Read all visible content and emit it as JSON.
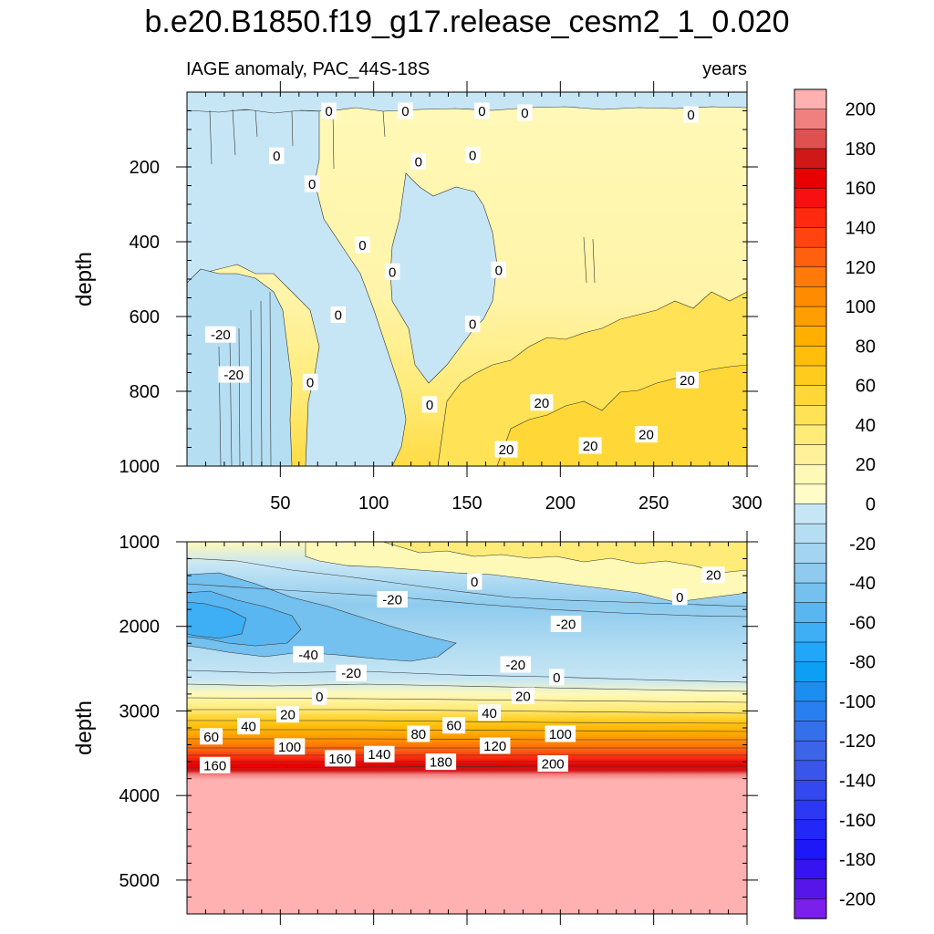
{
  "title": "b.e20.B1850.f19_g17.release_cesm2_1_0.020",
  "chart_data": {
    "type": "heatmap",
    "variable": "IAGE anomaly",
    "region": "PAC_44S-18S",
    "units": "years",
    "xlabel": "",
    "ylabel": "depth",
    "xlim": [
      0,
      300
    ],
    "xticks": [
      50,
      100,
      150,
      200,
      250,
      300
    ],
    "panels": [
      {
        "name": "upper",
        "ylim": [
          1000,
          0
        ],
        "yticks": [
          200,
          400,
          600,
          800,
          1000
        ],
        "contour_labels": [
          {
            "text": "0",
            "x": 76,
            "y": 50
          },
          {
            "text": "0",
            "x": 117,
            "y": 50
          },
          {
            "text": "0",
            "x": 158,
            "y": 50
          },
          {
            "text": "0",
            "x": 181,
            "y": 55
          },
          {
            "text": "0",
            "x": 270,
            "y": 60
          },
          {
            "text": "0",
            "x": 48,
            "y": 170
          },
          {
            "text": "0",
            "x": 124,
            "y": 185
          },
          {
            "text": "0",
            "x": 153,
            "y": 168
          },
          {
            "text": "0",
            "x": 67,
            "y": 245
          },
          {
            "text": "0",
            "x": 94,
            "y": 408
          },
          {
            "text": "0",
            "x": 110,
            "y": 480
          },
          {
            "text": "0",
            "x": 167,
            "y": 475
          },
          {
            "text": "0",
            "x": 81,
            "y": 595
          },
          {
            "text": "0",
            "x": 153,
            "y": 620
          },
          {
            "text": "0",
            "x": 66,
            "y": 775
          },
          {
            "text": "0",
            "x": 130,
            "y": 835
          },
          {
            "text": "-20",
            "x": 18,
            "y": 648
          },
          {
            "text": "-20",
            "x": 25,
            "y": 755
          },
          {
            "text": "20",
            "x": 190,
            "y": 830
          },
          {
            "text": "20",
            "x": 268,
            "y": 770
          },
          {
            "text": "20",
            "x": 171,
            "y": 955
          },
          {
            "text": "20",
            "x": 216,
            "y": 945
          },
          {
            "text": "20",
            "x": 246,
            "y": 915
          }
        ]
      },
      {
        "name": "lower",
        "ylim": [
          5400,
          1000
        ],
        "yticks": [
          1000,
          2000,
          3000,
          4000,
          5000
        ],
        "contour_labels": [
          {
            "text": "20",
            "x": 282,
            "y": 1390
          },
          {
            "text": "0",
            "x": 264,
            "y": 1650
          },
          {
            "text": "0",
            "x": 154,
            "y": 1470
          },
          {
            "text": "-20",
            "x": 110,
            "y": 1680
          },
          {
            "text": "-20",
            "x": 203,
            "y": 1970
          },
          {
            "text": "-40",
            "x": 65,
            "y": 2330
          },
          {
            "text": "-20",
            "x": 88,
            "y": 2550
          },
          {
            "text": "-20",
            "x": 176,
            "y": 2450
          },
          {
            "text": "0",
            "x": 198,
            "y": 2600
          },
          {
            "text": "0",
            "x": 71,
            "y": 2830
          },
          {
            "text": "20",
            "x": 180,
            "y": 2820
          },
          {
            "text": "20",
            "x": 54,
            "y": 3040
          },
          {
            "text": "40",
            "x": 33,
            "y": 3180
          },
          {
            "text": "40",
            "x": 162,
            "y": 3020
          },
          {
            "text": "60",
            "x": 13,
            "y": 3300
          },
          {
            "text": "60",
            "x": 143,
            "y": 3170
          },
          {
            "text": "80",
            "x": 124,
            "y": 3270
          },
          {
            "text": "100",
            "x": 55,
            "y": 3420
          },
          {
            "text": "100",
            "x": 200,
            "y": 3270
          },
          {
            "text": "120",
            "x": 165,
            "y": 3410
          },
          {
            "text": "140",
            "x": 103,
            "y": 3510
          },
          {
            "text": "160",
            "x": 82,
            "y": 3560
          },
          {
            "text": "160",
            "x": 15,
            "y": 3640
          },
          {
            "text": "180",
            "x": 136,
            "y": 3600
          },
          {
            "text": "200",
            "x": 196,
            "y": 3620
          }
        ]
      }
    ],
    "colorbar": {
      "min": -210,
      "max": 210,
      "step": 10,
      "tick_labels": [
        "200",
        "180",
        "160",
        "140",
        "120",
        "100",
        "80",
        "60",
        "40",
        "20",
        "0",
        "-20",
        "-40",
        "-60",
        "-80",
        "-100",
        "-120",
        "-140",
        "-160",
        "-180",
        "-200"
      ],
      "colors": [
        "#ffb0b0",
        "#f08080",
        "#e05050",
        "#d01818",
        "#e80000",
        "#f81010",
        "#ff2a10",
        "#ff4410",
        "#ff6010",
        "#ff7a08",
        "#ff8c00",
        "#ff9e00",
        "#ffaf00",
        "#ffbe0a",
        "#ffcc1e",
        "#ffd838",
        "#ffe255",
        "#ffeb78",
        "#fff19a",
        "#fff9b8",
        "#fffcc8",
        "#c7e6f5",
        "#b6def2",
        "#a4d5f0",
        "#8ecbee",
        "#74c0ee",
        "#5ab6f0",
        "#3eaef5",
        "#22a6fa",
        "#0d9ef5",
        "#1c8ef0",
        "#2a7ff0",
        "#3570ec",
        "#3c64e8",
        "#3a56ea",
        "#3448ef",
        "#2c38f2",
        "#2228f5",
        "#1e18f8",
        "#3514f0",
        "#5616ea",
        "#7a20ea"
      ]
    }
  }
}
